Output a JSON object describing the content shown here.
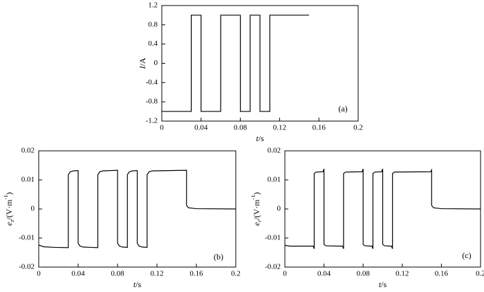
{
  "chart_data": [
    {
      "type": "line",
      "xlabel": [
        "t",
        "/s"
      ],
      "ylabel": [
        "I",
        "/A"
      ],
      "annotation": "(a)",
      "xlim": [
        0,
        0.2
      ],
      "xticks": [
        0,
        0.04,
        0.08,
        0.12,
        0.16,
        0.2
      ],
      "ylim": [
        -1.2,
        1.2
      ],
      "yticks": [
        1.2,
        0.8,
        0.4,
        0,
        -0.4,
        -0.8,
        -1.2
      ],
      "series": [
        {
          "color": "#000000",
          "x": [
            0,
            0.03,
            0.03,
            0.04,
            0.04,
            0.06,
            0.06,
            0.08,
            0.08,
            0.09,
            0.09,
            0.1,
            0.1,
            0.11,
            0.11,
            0.15
          ],
          "values": [
            -1,
            -1,
            1,
            1,
            -1,
            -1,
            1,
            1,
            -1,
            -1,
            1,
            1,
            -1,
            -1,
            1,
            1
          ]
        }
      ]
    },
    {
      "type": "line",
      "xlabel": [
        "t",
        "/s"
      ],
      "ylabel": [
        "e",
        "z",
        "/(V·m",
        "-1",
        ")"
      ],
      "annotation": "(b)",
      "xlim": [
        0,
        0.2
      ],
      "xticks": [
        0,
        0.04,
        0.08,
        0.12,
        0.16,
        0.2
      ],
      "ylim": [
        -0.02,
        0.02
      ],
      "yticks": [
        0.02,
        0.01,
        0,
        -0.01,
        -0.02
      ],
      "series": [
        {
          "color": "#000000",
          "x": [
            0,
            0.005,
            0.015,
            0.03,
            0.03,
            0.032,
            0.035,
            0.04,
            0.04,
            0.042,
            0.045,
            0.06,
            0.06,
            0.062,
            0.065,
            0.08,
            0.08,
            0.082,
            0.085,
            0.09,
            0.09,
            0.092,
            0.095,
            0.1,
            0.1,
            0.102,
            0.105,
            0.11,
            0.11,
            0.112,
            0.115,
            0.15,
            0.15,
            0.152,
            0.16,
            0.2
          ],
          "values": [
            -0.0124,
            -0.013,
            -0.0132,
            -0.0133,
            0.0118,
            0.0128,
            0.0131,
            0.0132,
            -0.0118,
            -0.0128,
            -0.0131,
            -0.0133,
            0.0118,
            0.0128,
            0.0131,
            0.0133,
            -0.0118,
            -0.0128,
            -0.0131,
            -0.0132,
            0.0118,
            0.0128,
            0.0131,
            0.0132,
            -0.0118,
            -0.0128,
            -0.0131,
            -0.0132,
            0.0118,
            0.0128,
            0.0131,
            0.0133,
            0.0012,
            0.0004,
            0.0001,
            0
          ]
        }
      ]
    },
    {
      "type": "line",
      "xlabel": [
        "t",
        "/s"
      ],
      "ylabel": [
        "e",
        "r",
        "/(V·m",
        "-1",
        ")"
      ],
      "annotation": "(c)",
      "xlim": [
        0,
        0.2
      ],
      "xticks": [
        0,
        0.04,
        0.08,
        0.12,
        0.16,
        0.2
      ],
      "ylim": [
        -0.02,
        0.02
      ],
      "yticks": [
        0.02,
        0.01,
        0,
        -0.01,
        -0.02
      ],
      "series": [
        {
          "color": "#000000",
          "x": [
            0,
            0.005,
            0.029,
            0.03,
            0.03,
            0.032,
            0.039,
            0.04,
            0.04,
            0.042,
            0.059,
            0.06,
            0.06,
            0.062,
            0.079,
            0.08,
            0.08,
            0.082,
            0.089,
            0.09,
            0.09,
            0.092,
            0.099,
            0.1,
            0.1,
            0.102,
            0.109,
            0.11,
            0.11,
            0.112,
            0.149,
            0.15,
            0.15,
            0.152,
            0.16,
            0.2
          ],
          "values": [
            -0.0125,
            -0.0128,
            -0.0128,
            -0.0137,
            0.0122,
            0.0127,
            0.0128,
            0.0138,
            -0.0122,
            -0.0127,
            -0.0128,
            -0.0137,
            0.0122,
            0.0127,
            0.0128,
            0.0138,
            -0.0122,
            -0.0127,
            -0.0128,
            -0.0137,
            0.0122,
            0.0127,
            0.0128,
            0.0138,
            -0.0122,
            -0.0127,
            -0.0128,
            -0.0137,
            0.0122,
            0.0127,
            0.0128,
            0.0134,
            0.0012,
            0.0004,
            0.0001,
            0
          ]
        }
      ]
    }
  ]
}
